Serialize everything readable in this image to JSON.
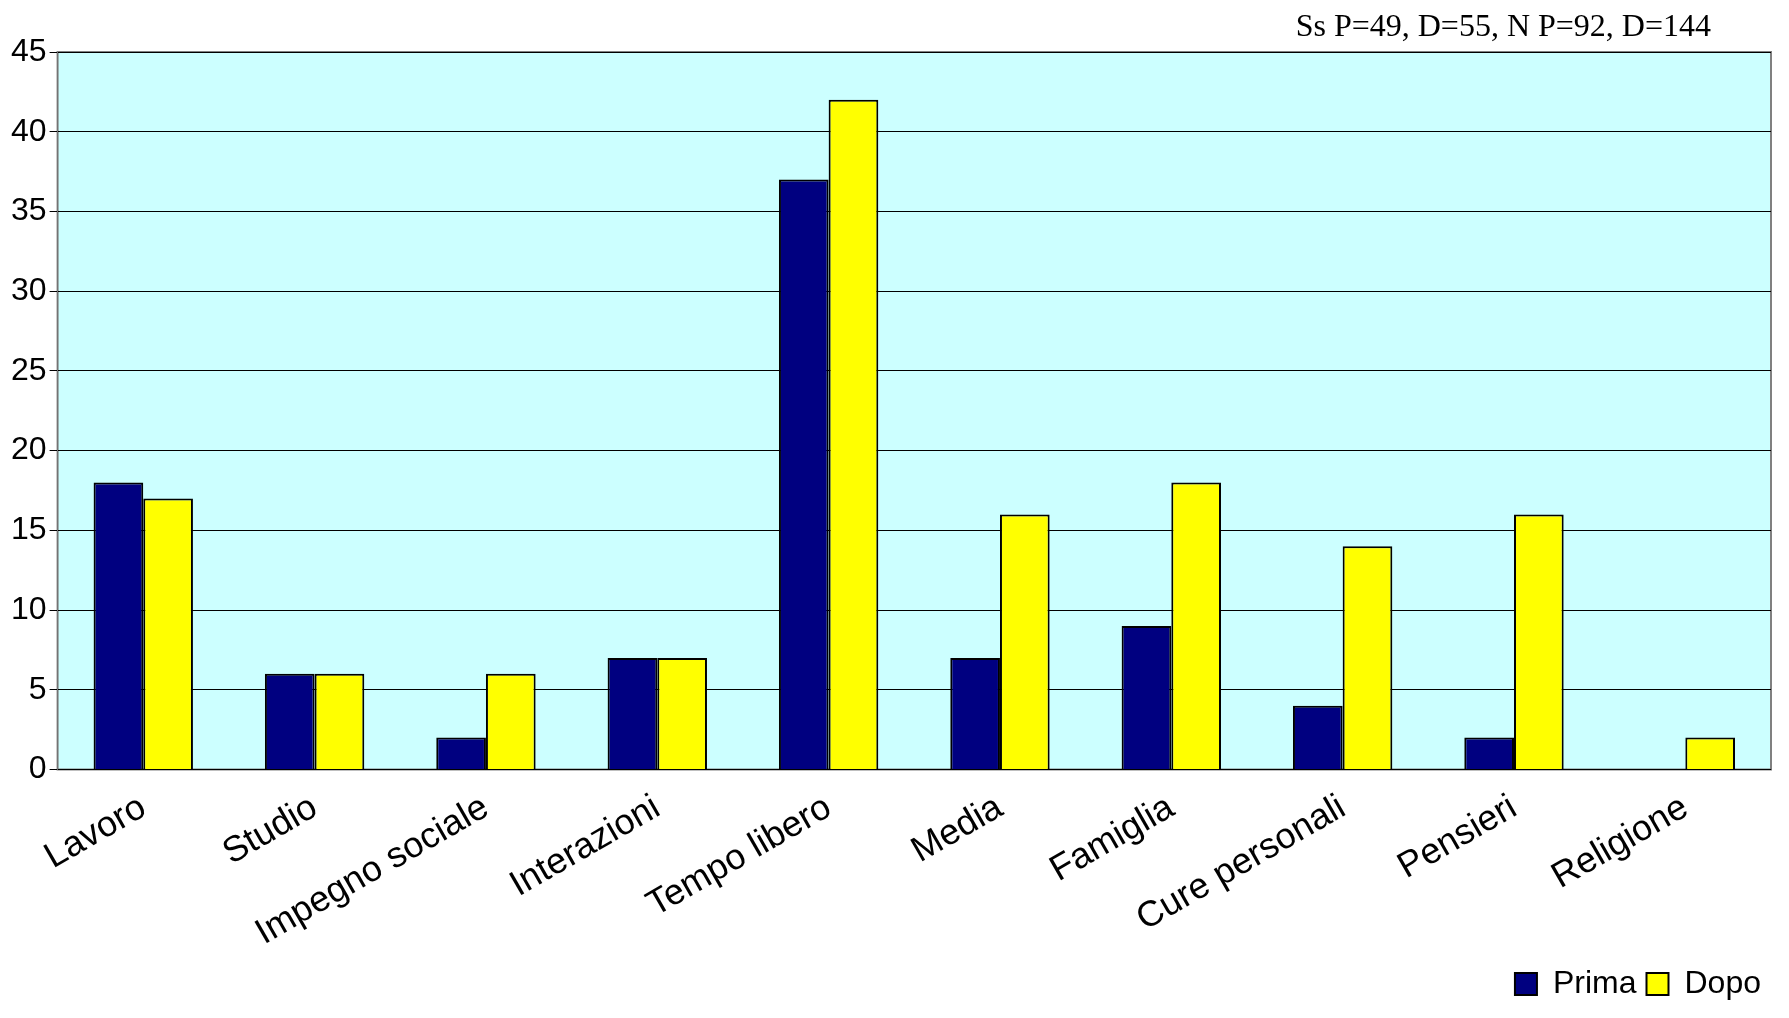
{
  "chart_data": {
    "type": "bar",
    "categories": [
      "Lavoro",
      "Studio",
      "Impegno sociale",
      "Interazioni",
      "Tempo libero",
      "Media",
      "Famiglia",
      "Cure personali",
      "Pensieri",
      "Religione"
    ],
    "series": [
      {
        "name": "Prima",
        "color": "#000080",
        "values": [
          18,
          6,
          2,
          7,
          37,
          7,
          9,
          4,
          2,
          0
        ]
      },
      {
        "name": "Dopo",
        "color": "#ffff00",
        "values": [
          17,
          6,
          6,
          7,
          42,
          16,
          18,
          14,
          16,
          2
        ]
      }
    ],
    "ylim": [
      0,
      45
    ],
    "yticks": [
      0,
      5,
      10,
      15,
      20,
      25,
      30,
      35,
      40,
      45
    ],
    "grid": "y",
    "legend": "bottom right",
    "annotations": [
      "Ss P=49, D=55, N P=92, D=144"
    ]
  }
}
